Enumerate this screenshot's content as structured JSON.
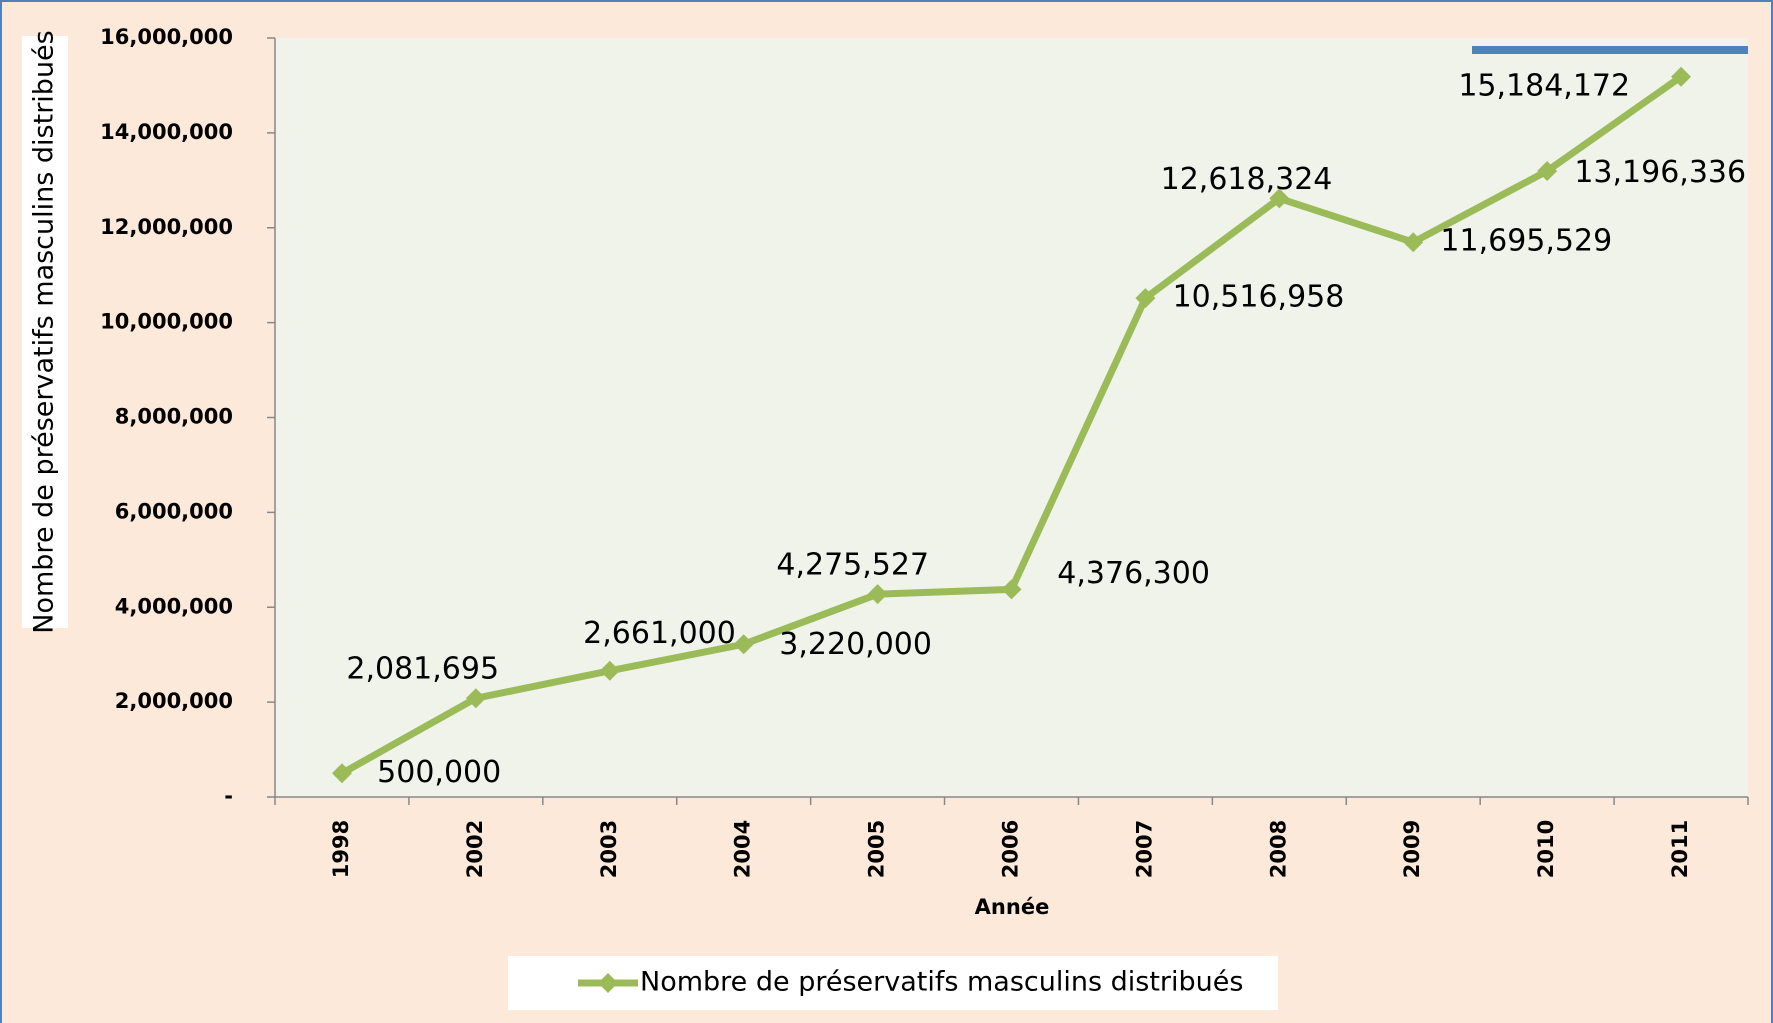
{
  "chart_data": {
    "type": "line",
    "x_label": "Année",
    "y_label": "Nombre de préservatifs masculins distribués",
    "categories": [
      "1998",
      "2002",
      "2003",
      "2004",
      "2005",
      "2006",
      "2007",
      "2008",
      "2009",
      "2010",
      "2011"
    ],
    "series": [
      {
        "name": "Nombre de préservatifs masculins distribués",
        "color": "#9bbb59",
        "values": [
          500000,
          2081695,
          2661000,
          3220000,
          4275527,
          4376300,
          10516958,
          12618324,
          11695529,
          13196336,
          15184172
        ],
        "value_labels": [
          "500,000",
          "2,081,695",
          "2,661,000",
          "3,220,000",
          "4,275,527",
          "4,376,300",
          "10,516,958",
          "12,618,324",
          "11,695,529",
          "13,196,336",
          "15,184,172"
        ]
      }
    ],
    "ylim": [
      0,
      16000000
    ],
    "yticks": [
      {
        "value": 0,
        "label": "-"
      },
      {
        "value": 2000000,
        "label": "2,000,000"
      },
      {
        "value": 4000000,
        "label": "4,000,000"
      },
      {
        "value": 6000000,
        "label": "6,000,000"
      },
      {
        "value": 8000000,
        "label": "8,000,000"
      },
      {
        "value": 10000000,
        "label": "10,000,000"
      },
      {
        "value": 12000000,
        "label": "12,000,000"
      },
      {
        "value": 14000000,
        "label": "14,000,000"
      },
      {
        "value": 16000000,
        "label": "16,000,000"
      }
    ],
    "legend": "bottom"
  }
}
